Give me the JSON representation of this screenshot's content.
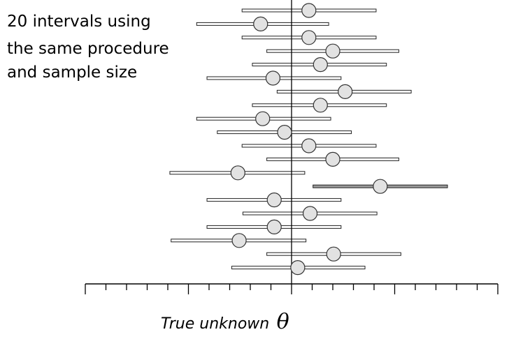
{
  "chart_data": {
    "type": "interval",
    "annotation": [
      "20 intervals using",
      "the same procedure",
      "and sample size"
    ],
    "xlabel": "True unknown",
    "xlabel_symbol": "θ",
    "true_value": 0,
    "xlim": [
      -5,
      5
    ],
    "tick_count": 21,
    "intervals": [
      {
        "center": 0.42,
        "low": -1.2,
        "high": 2.05,
        "covers_true": true
      },
      {
        "center": -0.75,
        "low": -2.3,
        "high": 0.9,
        "covers_true": true
      },
      {
        "center": 0.42,
        "low": -1.2,
        "high": 2.05,
        "covers_true": true
      },
      {
        "center": 1.0,
        "low": -0.6,
        "high": 2.6,
        "covers_true": true
      },
      {
        "center": 0.7,
        "low": -0.95,
        "high": 2.3,
        "covers_true": true
      },
      {
        "center": -0.45,
        "low": -2.05,
        "high": 1.2,
        "covers_true": true
      },
      {
        "center": 1.3,
        "low": -0.35,
        "high": 2.9,
        "covers_true": true
      },
      {
        "center": 0.7,
        "low": -0.95,
        "high": 2.3,
        "covers_true": true
      },
      {
        "center": -0.7,
        "low": -2.3,
        "high": 0.95,
        "covers_true": true
      },
      {
        "center": -0.17,
        "low": -1.8,
        "high": 1.45,
        "covers_true": true
      },
      {
        "center": 0.42,
        "low": -1.2,
        "high": 2.05,
        "covers_true": true
      },
      {
        "center": 1.0,
        "low": -0.6,
        "high": 2.6,
        "covers_true": true
      },
      {
        "center": -1.3,
        "low": -2.95,
        "high": 0.32,
        "covers_true": true
      },
      {
        "center": 2.15,
        "low": 0.52,
        "high": 3.78,
        "covers_true": false
      },
      {
        "center": -0.42,
        "low": -2.05,
        "high": 1.2,
        "covers_true": true
      },
      {
        "center": 0.45,
        "low": -1.18,
        "high": 2.07,
        "covers_true": true
      },
      {
        "center": -0.42,
        "low": -2.05,
        "high": 1.2,
        "covers_true": true
      },
      {
        "center": -1.27,
        "low": -2.92,
        "high": 0.35,
        "covers_true": true
      },
      {
        "center": 1.02,
        "low": -0.6,
        "high": 2.65,
        "covers_true": true
      },
      {
        "center": 0.15,
        "low": -1.45,
        "high": 1.78,
        "covers_true": true
      }
    ]
  }
}
